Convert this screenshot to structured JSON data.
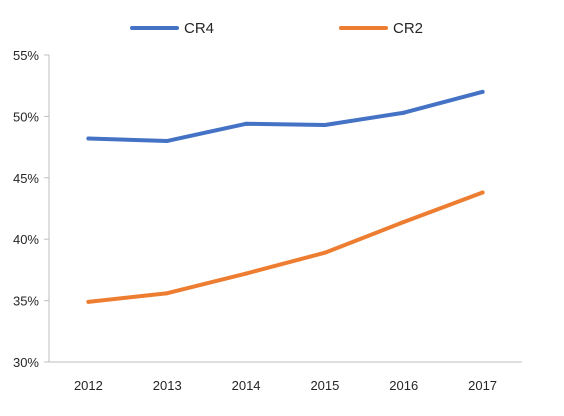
{
  "chart_data": {
    "type": "line",
    "title": "",
    "xlabel": "",
    "ylabel": "",
    "categories": [
      "2012",
      "2013",
      "2014",
      "2015",
      "2016",
      "2017"
    ],
    "series": [
      {
        "name": "CR4",
        "color": "#4472C4",
        "values": [
          48.2,
          48.0,
          49.4,
          49.3,
          50.3,
          52.0
        ]
      },
      {
        "name": "CR2",
        "color": "#ED7D31",
        "values": [
          34.9,
          35.6,
          37.2,
          38.9,
          41.4,
          43.8
        ]
      }
    ],
    "ylim": [
      30,
      55
    ],
    "yticks": [
      30,
      35,
      40,
      45,
      50,
      55
    ],
    "ytick_labels": [
      "30%",
      "35%",
      "40%",
      "45%",
      "50%",
      "55%"
    ],
    "grid": false,
    "legend_position": "top"
  }
}
